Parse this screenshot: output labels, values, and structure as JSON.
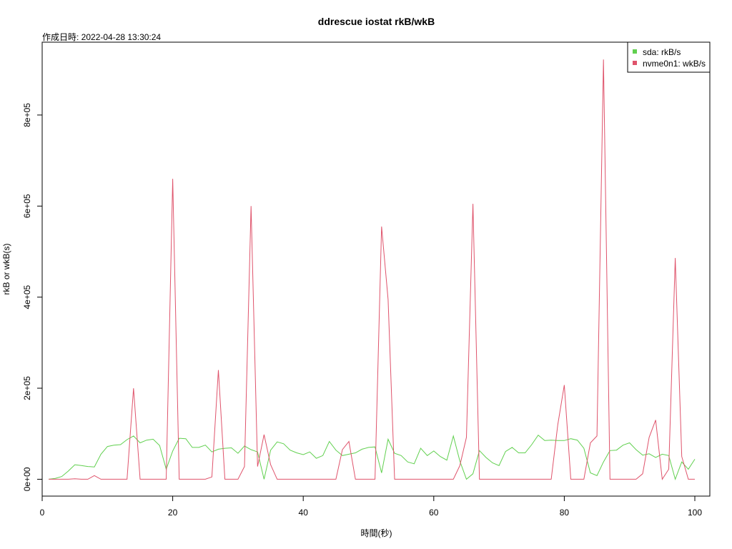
{
  "chart_data": {
    "type": "line",
    "title": "ddrescue iostat rkB/wkB",
    "subtitle": "作成日時:  2022-04-28 13:30:24",
    "xlabel": "時間(秒)",
    "ylabel": "rkB or wkB(s)",
    "xlim": [
      0,
      102.3
    ],
    "ylim": [
      -37000,
      960000
    ],
    "x_ticks": [
      0,
      20,
      40,
      60,
      80,
      100
    ],
    "x_tick_labels": [
      "0",
      "20",
      "40",
      "60",
      "80",
      "100"
    ],
    "y_ticks": [
      0,
      200000,
      400000,
      600000,
      800000
    ],
    "y_tick_labels": [
      "0e+00",
      "2e+05",
      "4e+05",
      "6e+05",
      "8e+05"
    ],
    "legend_position": "top-right",
    "x": [
      1,
      2,
      3,
      4,
      5,
      6,
      7,
      8,
      9,
      10,
      11,
      12,
      13,
      14,
      15,
      16,
      17,
      18,
      19,
      20,
      21,
      22,
      23,
      24,
      25,
      26,
      27,
      28,
      29,
      30,
      31,
      32,
      33,
      34,
      35,
      36,
      37,
      38,
      39,
      40,
      41,
      42,
      43,
      44,
      45,
      46,
      47,
      48,
      49,
      50,
      51,
      52,
      53,
      54,
      55,
      56,
      57,
      58,
      59,
      60,
      61,
      62,
      63,
      64,
      65,
      66,
      67,
      68,
      69,
      70,
      71,
      72,
      73,
      74,
      75,
      76,
      77,
      78,
      79,
      80,
      81,
      82,
      83,
      84,
      85,
      86,
      87,
      88,
      89,
      90,
      91,
      92,
      93,
      94,
      95,
      96,
      97,
      98,
      99,
      100
    ],
    "series": [
      {
        "name": "sda: rkB/s",
        "color": "#61d04f",
        "values": [
          0,
          2000,
          6000,
          18000,
          32000,
          30000,
          28000,
          27000,
          55000,
          72000,
          75000,
          76000,
          87000,
          95000,
          80000,
          86000,
          88000,
          74000,
          22000,
          62000,
          90000,
          89000,
          70000,
          70000,
          75000,
          60000,
          66000,
          68000,
          69000,
          57000,
          73000,
          65000,
          60000,
          0,
          64000,
          82000,
          78000,
          64000,
          58000,
          54000,
          60000,
          46000,
          52000,
          83000,
          64000,
          52000,
          55000,
          58000,
          66000,
          70000,
          71000,
          14000,
          88000,
          57000,
          52000,
          38000,
          34000,
          68000,
          52000,
          62000,
          50000,
          42000,
          95000,
          40000,
          0,
          12000,
          63000,
          48000,
          36000,
          30000,
          61000,
          70000,
          58000,
          58000,
          76000,
          97000,
          85000,
          86000,
          85000,
          85000,
          89000,
          86000,
          68000,
          14000,
          8000,
          38000,
          63000,
          64000,
          75000,
          80000,
          65000,
          53000,
          56000,
          48000,
          55000,
          52000,
          0,
          38000,
          22000,
          44000
        ]
      },
      {
        "name": "nvme0n1: wkB/s",
        "color": "#df536b",
        "values": [
          0,
          0,
          0,
          0,
          1000,
          0,
          0,
          8000,
          0,
          0,
          0,
          0,
          0,
          200000,
          0,
          0,
          0,
          0,
          0,
          660000,
          0,
          0,
          0,
          0,
          0,
          5000,
          240000,
          0,
          0,
          0,
          28000,
          600000,
          28000,
          98000,
          32000,
          0,
          0,
          0,
          0,
          0,
          0,
          0,
          0,
          0,
          0,
          65000,
          83000,
          0,
          0,
          0,
          0,
          555000,
          395000,
          0,
          0,
          0,
          0,
          0,
          0,
          0,
          0,
          0,
          0,
          30000,
          92000,
          605000,
          0,
          0,
          0,
          0,
          0,
          0,
          0,
          0,
          0,
          0,
          0,
          0,
          120000,
          207000,
          0,
          0,
          0,
          80000,
          95000,
          922000,
          0,
          0,
          0,
          0,
          0,
          12000,
          92000,
          130000,
          0,
          22000,
          486000,
          50000,
          0,
          0
        ]
      }
    ]
  }
}
